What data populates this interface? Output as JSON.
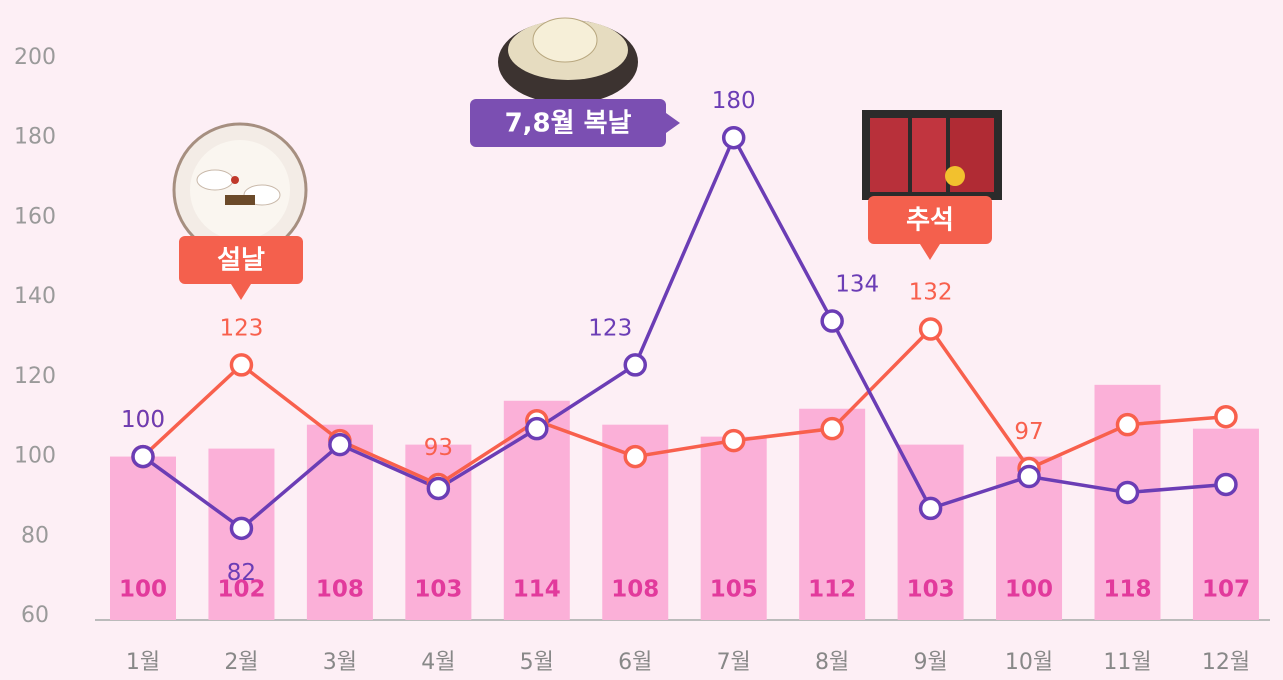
{
  "chart_data": {
    "type": "bar-line",
    "categories": [
      "1월",
      "2월",
      "3월",
      "4월",
      "5월",
      "6월",
      "7월",
      "8월",
      "9월",
      "10월",
      "11월",
      "12월"
    ],
    "values": [
      100,
      102,
      108,
      103,
      114,
      108,
      105,
      112,
      103,
      100,
      118,
      107
    ],
    "color": "#fbb0d8",
    "series": [
      {
        "color": "#f8604d",
        "values": [
          100,
          123,
          104,
          93,
          109,
          100,
          104,
          107,
          132,
          97,
          108,
          110
        ],
        "value_labels": [
          "100",
          "123",
          null,
          "93",
          null,
          null,
          null,
          null,
          "132",
          "97",
          null,
          null
        ]
      },
      {
        "color": "#6b3db5",
        "values": [
          100,
          82,
          103,
          92,
          107,
          123,
          180,
          134,
          87,
          95,
          91,
          93
        ],
        "value_labels": [
          "100",
          "82",
          null,
          null,
          null,
          "123",
          "180",
          "134",
          null,
          null,
          null,
          null
        ]
      }
    ],
    "annotations": [
      "설날",
      "7,8월 복날",
      "추석"
    ],
    "ylim": [
      60,
      200
    ],
    "yticks": [
      60,
      80,
      100,
      120,
      140,
      160,
      180,
      200
    ]
  }
}
